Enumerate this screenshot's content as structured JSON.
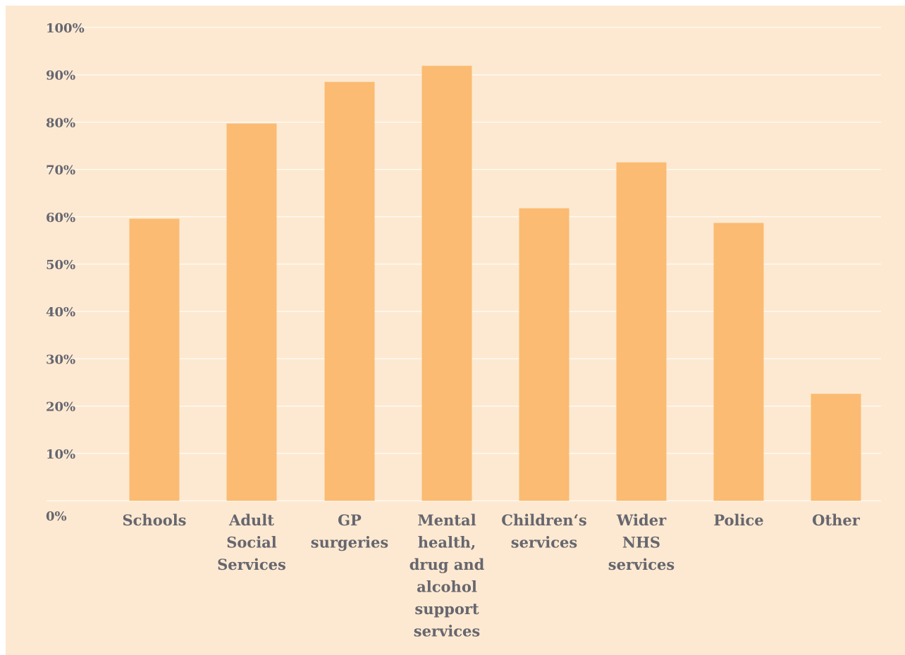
{
  "colors": {
    "background": "#fde9d1",
    "bar": "#fbbb72",
    "gridline": "#ffffff",
    "text": "#66666e"
  },
  "chart_data": {
    "type": "bar",
    "title": "",
    "xlabel": "",
    "ylabel": "",
    "ylim": [
      0,
      100
    ],
    "y_ticks": [
      0,
      10,
      20,
      30,
      40,
      50,
      60,
      70,
      80,
      90,
      100
    ],
    "y_tick_labels": [
      "0%",
      "10%",
      "20%",
      "30%",
      "40%",
      "50%",
      "60%",
      "70%",
      "80%",
      "90%",
      "100%"
    ],
    "grid": true,
    "legend": "none",
    "categories": [
      "Schools",
      "Adult Social Services",
      "GP surgeries",
      "Mental health, drug and alcohol support services",
      "Children‘s services",
      "Wider NHS services",
      "Police",
      "Other"
    ],
    "category_label_lines": [
      [
        "Schools"
      ],
      [
        "Adult",
        "Social",
        "Services"
      ],
      [
        "GP",
        "surgeries"
      ],
      [
        "Mental",
        "health,",
        "drug and",
        "alcohol",
        "support",
        "services"
      ],
      [
        "Children‘s",
        "services"
      ],
      [
        "Wider",
        "NHS",
        "services"
      ],
      [
        "Police"
      ],
      [
        "Other"
      ]
    ],
    "values": [
      59.6,
      79.7,
      88.5,
      91.9,
      61.8,
      71.5,
      58.7,
      22.6
    ]
  }
}
